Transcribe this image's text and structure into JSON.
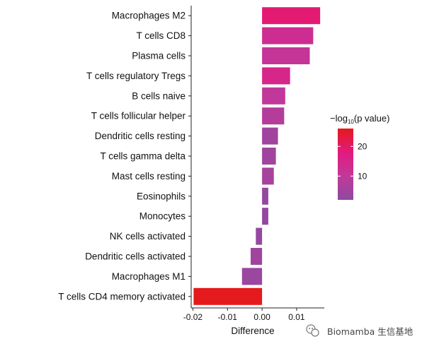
{
  "chart_data": {
    "type": "bar",
    "orientation": "horizontal",
    "categories": [
      "Macrophages M2",
      "T cells CD8",
      "Plasma cells",
      "T cells regulatory  Tregs",
      "B cells naive",
      "T cells follicular helper",
      "Dendritic cells resting",
      "T cells gamma delta",
      "Mast cells resting",
      "Eosinophils",
      "Monocytes",
      "NK cells activated",
      "Dendritic cells activated",
      "Macrophages M1",
      "T cells CD4 memory activated"
    ],
    "values": [
      0.0168,
      0.0148,
      0.0138,
      0.0081,
      0.0067,
      0.0064,
      0.0046,
      0.004,
      0.0034,
      0.0018,
      0.0018,
      -0.0018,
      -0.0033,
      -0.0058,
      -0.0198
    ],
    "color_values": [
      19,
      13,
      11,
      15,
      10,
      8,
      5,
      5,
      6,
      3,
      3,
      3,
      5,
      4,
      26
    ],
    "xlabel": "Difference",
    "ylabel": "",
    "xlim": [
      -0.0205,
      0.018
    ],
    "xticks": [
      -0.02,
      -0.01,
      0.0,
      0.01
    ],
    "xtick_labels": [
      "-0.02",
      "-0.01",
      "0.00",
      "0.01"
    ],
    "legend": {
      "title_prefix": "−log",
      "title_sub": "10",
      "title_suffix": "(p value)",
      "ticks": [
        20,
        10
      ],
      "tick_labels": [
        "20",
        "10"
      ],
      "range": [
        2,
        26
      ],
      "colors": [
        "#e41a1c",
        "#e31a7e",
        "#c0399a",
        "#8e4aa0"
      ],
      "placement": "right"
    },
    "grid": false
  },
  "watermark": {
    "icon": "wechat-icon",
    "text": "Biomamba 生信基地"
  }
}
